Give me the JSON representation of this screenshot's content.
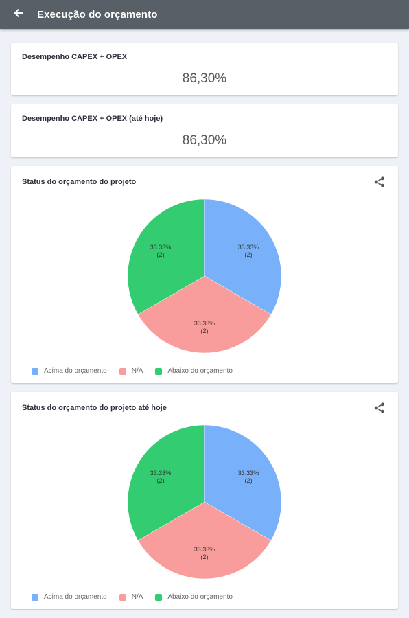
{
  "header": {
    "title": "Execução do orçamento",
    "back_icon": "arrow-left-icon"
  },
  "kpis": [
    {
      "title": "Desempenho CAPEX + OPEX",
      "value": "86,30%"
    },
    {
      "title": "Desempenho CAPEX + OPEX (até hoje)",
      "value": "86,30%"
    }
  ],
  "legend": [
    {
      "label": "Acima do orçamento",
      "color": "#78b0fa"
    },
    {
      "label": "N/A",
      "color": "#f99c9c"
    },
    {
      "label": "Abaixo do orçamento",
      "color": "#33cc70"
    }
  ],
  "share_icon": "share-icon",
  "chart_data": [
    {
      "type": "pie",
      "title": "Status do orçamento do projeto",
      "slices": [
        {
          "name": "Acima do orçamento",
          "value": 2,
          "percent": "33.33%",
          "count": "(2)",
          "color": "#78b0fa"
        },
        {
          "name": "N/A",
          "value": 2,
          "percent": "33.33%",
          "count": "(2)",
          "color": "#f99c9c"
        },
        {
          "name": "Abaixo do orçamento",
          "value": 2,
          "percent": "33.33%",
          "count": "(2)",
          "color": "#33cc70"
        }
      ],
      "legend_position": "bottom-left"
    },
    {
      "type": "pie",
      "title": "Status do orçamento do projeto até hoje",
      "slices": [
        {
          "name": "Acima do orçamento",
          "value": 2,
          "percent": "33.33%",
          "count": "(2)",
          "color": "#78b0fa"
        },
        {
          "name": "N/A",
          "value": 2,
          "percent": "33.33%",
          "count": "(2)",
          "color": "#f99c9c"
        },
        {
          "name": "Abaixo do orçamento",
          "value": 2,
          "percent": "33.33%",
          "count": "(2)",
          "color": "#33cc70"
        }
      ],
      "legend_position": "bottom-left"
    }
  ]
}
